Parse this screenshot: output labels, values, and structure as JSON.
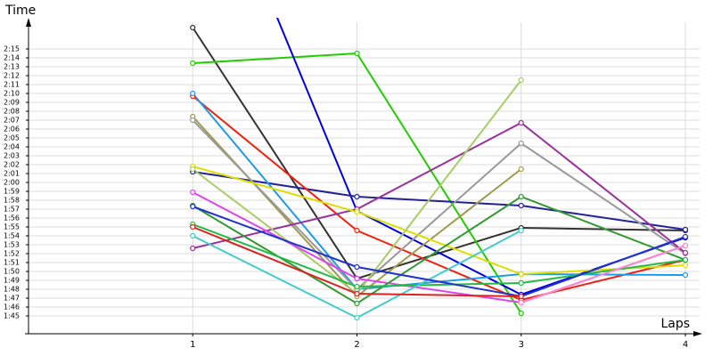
{
  "chart_data": {
    "type": "line",
    "y_label": "Time",
    "x_label": "Laps",
    "x": [
      1,
      2,
      3,
      4
    ],
    "xlim": [
      0,
      4
    ],
    "xticks": [
      1,
      2,
      3,
      4
    ],
    "ylim": [
      103,
      138
    ],
    "yticks": [
      {
        "value": 105,
        "label": "1:45"
      },
      {
        "value": 106,
        "label": "1:46"
      },
      {
        "value": 107,
        "label": "1:47"
      },
      {
        "value": 108,
        "label": "1:48"
      },
      {
        "value": 109,
        "label": "1:49"
      },
      {
        "value": 110,
        "label": "1:50"
      },
      {
        "value": 111,
        "label": "1:51"
      },
      {
        "value": 112,
        "label": "1:52"
      },
      {
        "value": 113,
        "label": "1:53"
      },
      {
        "value": 114,
        "label": "1:54"
      },
      {
        "value": 115,
        "label": "1:55"
      },
      {
        "value": 116,
        "label": "1:56"
      },
      {
        "value": 117,
        "label": "1:57"
      },
      {
        "value": 118,
        "label": "1:58"
      },
      {
        "value": 119,
        "label": "1:59"
      },
      {
        "value": 120,
        "label": "2:00"
      },
      {
        "value": 121,
        "label": "2:01"
      },
      {
        "value": 122,
        "label": "2:02"
      },
      {
        "value": 123,
        "label": "2:03"
      },
      {
        "value": 124,
        "label": "2:04"
      },
      {
        "value": 125,
        "label": "2:05"
      },
      {
        "value": 126,
        "label": "2:06"
      },
      {
        "value": 127,
        "label": "2:07"
      },
      {
        "value": 128,
        "label": "2:08"
      },
      {
        "value": 129,
        "label": "2:09"
      },
      {
        "value": 130,
        "label": "2:10"
      },
      {
        "value": 131,
        "label": "2:11"
      },
      {
        "value": 132,
        "label": "2:12"
      },
      {
        "value": 133,
        "label": "2:13"
      },
      {
        "value": 134,
        "label": "2:14"
      },
      {
        "value": 135,
        "label": "2:15"
      }
    ],
    "grid": true,
    "series": [
      {
        "color": "#333333",
        "values": [
          137.4,
          109.2,
          114.9,
          114.6
        ]
      },
      {
        "color": "#22cc00",
        "values": [
          133.4,
          134.5,
          105.3,
          null
        ]
      },
      {
        "color": "#0000dd",
        "values": [
          161.5,
          116.8,
          107.4,
          113.8
        ]
      },
      {
        "color": "#222299",
        "values": [
          121.2,
          118.4,
          117.4,
          114.7
        ]
      },
      {
        "color": "#ee2211",
        "values": [
          129.7,
          114.6,
          106.8,
          111.3
        ]
      },
      {
        "color": "#1e9be8",
        "values": [
          130.0,
          108.0,
          109.7,
          109.6
        ]
      },
      {
        "color": "#a09a50",
        "values": [
          127.4,
          107.2,
          121.5,
          null
        ]
      },
      {
        "color": "#999999",
        "values": [
          127.0,
          108.0,
          124.4,
          112.0
        ]
      },
      {
        "color": "#993399",
        "values": [
          112.6,
          117.0,
          126.7,
          112.1
        ]
      },
      {
        "color": "#dddd00",
        "values": [
          121.8,
          116.7,
          109.7,
          110.7
        ]
      },
      {
        "color": "#aacc66",
        "values": [
          121.5,
          107.5,
          131.5,
          null
        ]
      },
      {
        "color": "#dd44ee",
        "values": [
          118.9,
          109.2,
          106.5,
          112.9
        ]
      },
      {
        "color": "#339933",
        "values": [
          117.4,
          106.4,
          118.4,
          111.3
        ]
      },
      {
        "color": "#22bb44",
        "values": [
          115.3,
          108.3,
          108.7,
          111.3
        ]
      },
      {
        "color": "#44cccc",
        "values": [
          114.0,
          104.8,
          114.6,
          null
        ]
      },
      {
        "color": "#2233cc",
        "values": [
          117.3,
          110.5,
          107.2,
          113.9
        ]
      },
      {
        "color": "#dd2222",
        "values": [
          115.0,
          107.5,
          107.2,
          null
        ]
      },
      {
        "color": "#ff88cc",
        "values": [
          null,
          null,
          106.5,
          112.9
        ]
      }
    ]
  }
}
